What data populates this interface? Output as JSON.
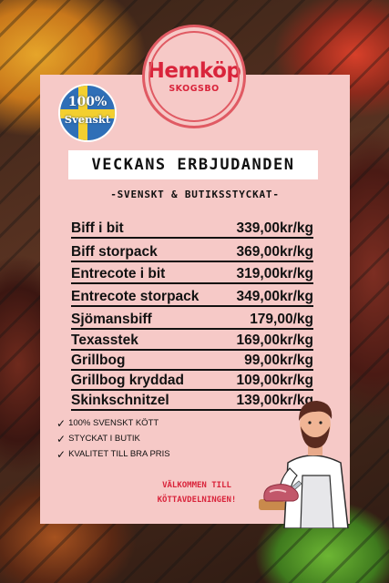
{
  "brand": {
    "name": "Hemköp",
    "location": "SKOGSBO",
    "color": "#d9243b"
  },
  "badge": {
    "line1": "100%",
    "line2": "Svenskt",
    "colors": {
      "blue": "#2f6fb7",
      "yellow": "#f3cf2f"
    }
  },
  "title": "VECKANS ERBJUDANDEN",
  "subtitle": "-SVENSKT & BUTIKSSTYCKAT-",
  "offers": [
    {
      "name": "Biff i bit",
      "price": "339,00kr/kg"
    },
    {
      "name": "Biff storpack",
      "price": "369,00kr/kg"
    },
    {
      "name": "Entrecote i bit",
      "price": "319,00kr/kg"
    },
    {
      "name": "Entrecote storpack",
      "price": "349,00kr/kg"
    },
    {
      "name": "Sjömansbiff",
      "price": "179,00/kg"
    },
    {
      "name": "Texasstek",
      "price": "169,00kr/kg"
    },
    {
      "name": "Grillbog",
      "price": "99,00kr/kg"
    },
    {
      "name": "Grillbog kryddad",
      "price": "109,00kr/kg"
    },
    {
      "name": "Skinkschnitzel",
      "price": "139,00kr/kg"
    }
  ],
  "checklist": [
    "100% SVENSKT KÖTT",
    "STYCKAT I BUTIK",
    "KVALITET TILL BRA PRIS"
  ],
  "welcome": {
    "line1": "VÄLKOMMEN TILL",
    "line2": "KÖTTAVDELNINGEN!"
  },
  "colors": {
    "card": "#f6c9c7",
    "accent": "#e05a63"
  },
  "icons": {
    "check": "checkmark-icon",
    "butcher": "butcher-illustration"
  }
}
